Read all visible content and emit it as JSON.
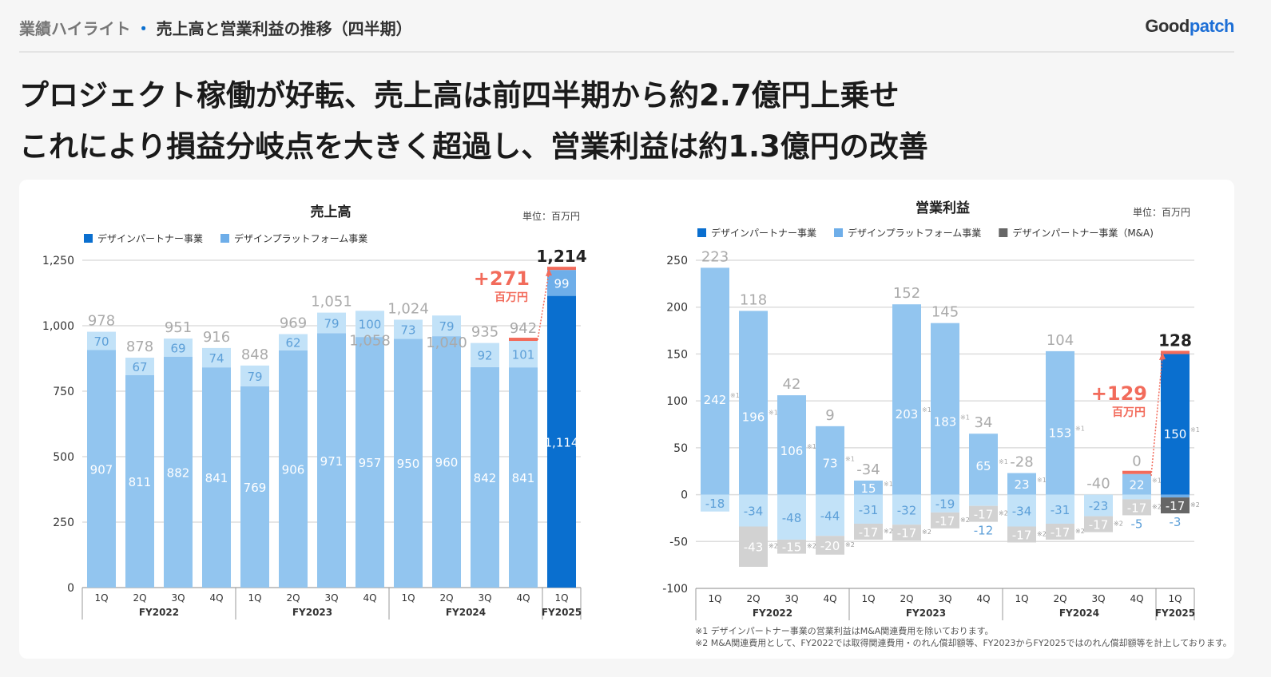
{
  "header": {
    "section": "業績ハイライト",
    "subtitle": "売上高と営業利益の推移（四半期）",
    "logo": "Goodpatch"
  },
  "headline": {
    "line1": "プロジェクト稼働が好転、売上高は前四半期から約2.7億円上乗せ",
    "line2": "これにより損益分岐点を大きく超過し、営業利益は約1.3億円の改善"
  },
  "colors": {
    "partner": "#92c5ef",
    "platform": "#c2e2f8",
    "partner_latest": "#0a6fcf",
    "platform_latest": "#6eaee9",
    "ma": "#d2d2d2",
    "ma_latest": "#666666",
    "accent": "#f26b5b",
    "legend_partner": "#0a6fcf",
    "legend_platform": "#6eaee9",
    "legend_ma": "#666666"
  },
  "footnotes": [
    "※1 デザインパートナー事業の営業利益はM&A関連費用を除いております。",
    "※2 M&A関連費用として、FY2022では取得関連費用・のれん償却額等、FY2023からFY2025ではのれん償却額等を計上しております。"
  ],
  "chart_data": [
    {
      "type": "bar",
      "stacked": true,
      "title": "売上高",
      "unit": "単位：百万円",
      "legend": [
        "デザインパートナー事業",
        "デザインプラットフォーム事業"
      ],
      "quarters": [
        "1Q",
        "2Q",
        "3Q",
        "4Q",
        "1Q",
        "2Q",
        "3Q",
        "4Q",
        "1Q",
        "2Q",
        "3Q",
        "4Q",
        "1Q"
      ],
      "fiscal_years": [
        "FY2022",
        "FY2023",
        "FY2024",
        "FY2025"
      ],
      "yticks": [
        "0",
        "250",
        "500",
        "750",
        "1,000",
        "1,250"
      ],
      "ylim": [
        0,
        1250
      ],
      "series": [
        {
          "name": "デザインパートナー事業",
          "values": [
            907,
            811,
            882,
            841,
            769,
            906,
            971,
            957,
            950,
            960,
            842,
            841,
            1114
          ],
          "labels": [
            "907",
            "811",
            "882",
            "841",
            "769",
            "906",
            "971",
            "957",
            "950",
            "960",
            "842",
            "841",
            "1,114"
          ]
        },
        {
          "name": "デザインプラットフォーム事業",
          "values": [
            70,
            67,
            69,
            74,
            79,
            62,
            79,
            100,
            73,
            79,
            92,
            101,
            99
          ],
          "labels": [
            "70",
            "67",
            "69",
            "74",
            "79",
            "62",
            "79",
            "100",
            "73",
            "79",
            "92",
            "101",
            "99"
          ]
        }
      ],
      "totals": [
        "978",
        "878",
        "951",
        "916",
        "848",
        "969",
        "1,051",
        "1,058",
        "1,024",
        "1,040",
        "935",
        "942",
        "1,214"
      ],
      "annotation": {
        "value": "+271",
        "unit": "百万円"
      }
    },
    {
      "type": "bar",
      "stacked": true,
      "title": "営業利益",
      "unit": "単位：百万円",
      "legend": [
        "デザインパートナー事業",
        "デザインプラットフォーム事業",
        "デザインパートナー事業（M&A)"
      ],
      "quarters": [
        "1Q",
        "2Q",
        "3Q",
        "4Q",
        "1Q",
        "2Q",
        "3Q",
        "4Q",
        "1Q",
        "2Q",
        "3Q",
        "4Q",
        "1Q"
      ],
      "fiscal_years": [
        "FY2022",
        "FY2023",
        "FY2024",
        "FY2025"
      ],
      "yticks": [
        "-100",
        "-50",
        "0",
        "50",
        "100",
        "150",
        "200",
        "250"
      ],
      "ylim": [
        -100,
        250
      ],
      "series": [
        {
          "name": "デザインパートナー事業",
          "values": [
            242,
            196,
            106,
            73,
            15,
            203,
            183,
            65,
            23,
            153,
            0,
            22,
            150
          ],
          "labels": [
            "242",
            "196",
            "106",
            "73",
            "15",
            "203",
            "183",
            "65",
            "23",
            "153",
            "",
            "22",
            "150"
          ]
        },
        {
          "name": "デザインプラットフォーム事業",
          "values": [
            -18,
            -34,
            -48,
            -44,
            -31,
            -32,
            -19,
            -12,
            -34,
            -31,
            -23,
            -5,
            -3
          ],
          "labels": [
            "-18",
            "-34",
            "-48",
            "-44",
            "-31",
            "-32",
            "-19",
            "-12",
            "-34",
            "-31",
            "-23",
            "-5",
            "-3"
          ]
        },
        {
          "name": "デザインパートナー事業（M&A)",
          "values": [
            0,
            -43,
            -15,
            -20,
            -17,
            -17,
            -17,
            -17,
            -17,
            -17,
            -17,
            -17,
            -17
          ],
          "labels": [
            "",
            "-43",
            "-15",
            "-20",
            "-17",
            "-17",
            "-17",
            "-17",
            "-17",
            "-17",
            "-17",
            "-17",
            "-17"
          ]
        }
      ],
      "totals": [
        "223",
        "118",
        "42",
        "9",
        "-34",
        "152",
        "145",
        "34",
        "-28",
        "104",
        "-40",
        "0",
        "128"
      ],
      "marks": {
        "note1": "※1",
        "note2": "※2"
      },
      "annotation": {
        "value": "+129",
        "unit": "百万円"
      }
    }
  ]
}
